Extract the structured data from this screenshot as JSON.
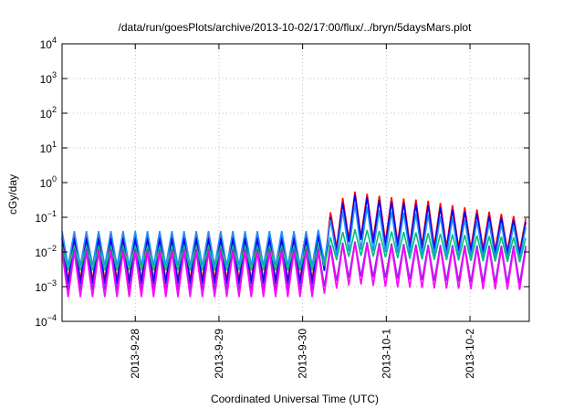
{
  "chart_data": {
    "type": "line",
    "title": "/data/run/goesPlots/archive/2013-10-02/17:00/flux/../bryn/5daysMars.plot",
    "xlabel": "Coordinated Universal Time (UTC)",
    "ylabel": "cGy/day",
    "y_scale": "log",
    "ylim": [
      0.0001,
      10000
    ],
    "y_ticks": [
      {
        "exp": -4,
        "value": 0.0001
      },
      {
        "exp": -3,
        "value": 0.001
      },
      {
        "exp": -2,
        "value": 0.01
      },
      {
        "exp": -1,
        "value": 0.1
      },
      {
        "exp": 0,
        "value": 1
      },
      {
        "exp": 1,
        "value": 10
      },
      {
        "exp": 2,
        "value": 100
      },
      {
        "exp": 3,
        "value": 1000
      },
      {
        "exp": 4,
        "value": 10000
      }
    ],
    "xlim": [
      "2013-09-27T03:00",
      "2013-10-02T17:00"
    ],
    "x_ticks": [
      "2013-9-28",
      "2013-9-29",
      "2013-9-30",
      "2013-10-1",
      "2013-10-2"
    ],
    "x_tick_dates": [
      "2013-09-28T00:00",
      "2013-09-29T00:00",
      "2013-09-30T00:00",
      "2013-10-01T00:00",
      "2013-10-02T00:00"
    ],
    "grid": true,
    "legend": "none",
    "oscillation_period_hours": 3.5,
    "series": [
      {
        "color": "#ff0000",
        "peaks": [
          [
            "2013-09-27T03:00",
            0.03
          ],
          [
            "2013-09-30T04:00",
            0.03
          ],
          [
            "2013-09-30T10:00",
            0.3
          ],
          [
            "2013-09-30T15:00",
            0.55
          ],
          [
            "2013-09-30T23:00",
            0.4
          ],
          [
            "2013-10-01T12:00",
            0.3
          ],
          [
            "2013-10-02T17:00",
            0.09
          ]
        ],
        "troughs": [
          [
            "2013-09-27T03:00",
            0.0015
          ],
          [
            "2013-09-30T04:00",
            0.0015
          ],
          [
            "2013-09-30T10:00",
            0.015
          ],
          [
            "2013-09-30T15:00",
            0.03
          ],
          [
            "2013-09-30T23:00",
            0.02
          ],
          [
            "2013-10-01T12:00",
            0.015
          ],
          [
            "2013-10-02T17:00",
            0.01
          ]
        ]
      },
      {
        "color": "#0000ff",
        "peaks": [
          [
            "2013-09-27T03:00",
            0.025
          ],
          [
            "2013-09-30T04:00",
            0.025
          ],
          [
            "2013-09-30T10:00",
            0.2
          ],
          [
            "2013-09-30T15:00",
            0.45
          ],
          [
            "2013-09-30T23:00",
            0.3
          ],
          [
            "2013-10-01T12:00",
            0.22
          ],
          [
            "2013-10-02T17:00",
            0.07
          ]
        ],
        "troughs": [
          [
            "2013-09-27T03:00",
            0.0012
          ],
          [
            "2013-09-30T04:00",
            0.0012
          ],
          [
            "2013-09-30T10:00",
            0.012
          ],
          [
            "2013-09-30T15:00",
            0.025
          ],
          [
            "2013-09-30T23:00",
            0.015
          ],
          [
            "2013-10-01T12:00",
            0.012
          ],
          [
            "2013-10-02T17:00",
            0.008
          ]
        ]
      },
      {
        "color": "#1e90ff",
        "peaks": [
          [
            "2013-09-27T03:00",
            0.04
          ],
          [
            "2013-09-30T04:00",
            0.04
          ],
          [
            "2013-09-30T10:00",
            0.12
          ],
          [
            "2013-09-30T15:00",
            0.25
          ],
          [
            "2013-09-30T23:00",
            0.15
          ],
          [
            "2013-10-01T12:00",
            0.12
          ],
          [
            "2013-10-02T17:00",
            0.05
          ]
        ],
        "troughs": [
          [
            "2013-09-27T03:00",
            0.004
          ],
          [
            "2013-09-30T04:00",
            0.004
          ],
          [
            "2013-09-30T10:00",
            0.008
          ],
          [
            "2013-09-30T15:00",
            0.012
          ],
          [
            "2013-09-30T23:00",
            0.01
          ],
          [
            "2013-10-01T12:00",
            0.008
          ],
          [
            "2013-10-02T17:00",
            0.006
          ]
        ]
      },
      {
        "color": "#00c07a",
        "peaks": [
          [
            "2013-09-27T03:00",
            0.015
          ],
          [
            "2013-09-30T04:00",
            0.015
          ],
          [
            "2013-09-30T10:00",
            0.035
          ],
          [
            "2013-09-30T15:00",
            0.045
          ],
          [
            "2013-09-30T23:00",
            0.04
          ],
          [
            "2013-10-01T12:00",
            0.035
          ],
          [
            "2013-10-02T17:00",
            0.025
          ]
        ],
        "troughs": [
          [
            "2013-09-27T03:00",
            0.003
          ],
          [
            "2013-09-30T04:00",
            0.003
          ],
          [
            "2013-09-30T10:00",
            0.006
          ],
          [
            "2013-09-30T15:00",
            0.008
          ],
          [
            "2013-09-30T23:00",
            0.007
          ],
          [
            "2013-10-01T12:00",
            0.006
          ],
          [
            "2013-10-02T17:00",
            0.005
          ]
        ]
      },
      {
        "color": "#8a2be2",
        "peaks": [
          [
            "2013-09-27T03:00",
            0.012
          ],
          [
            "2013-09-30T04:00",
            0.012
          ],
          [
            "2013-09-30T10:00",
            0.018
          ],
          [
            "2013-09-30T15:00",
            0.02
          ],
          [
            "2013-09-30T23:00",
            0.018
          ],
          [
            "2013-10-01T12:00",
            0.016
          ],
          [
            "2013-10-02T17:00",
            0.015
          ]
        ],
        "troughs": [
          [
            "2013-09-27T03:00",
            0.0008
          ],
          [
            "2013-09-30T04:00",
            0.0008
          ],
          [
            "2013-09-30T10:00",
            0.0015
          ],
          [
            "2013-09-30T15:00",
            0.002
          ],
          [
            "2013-09-30T23:00",
            0.0018
          ],
          [
            "2013-10-01T12:00",
            0.0015
          ],
          [
            "2013-10-02T17:00",
            0.0012
          ]
        ]
      },
      {
        "color": "#ff00ff",
        "peaks": [
          [
            "2013-09-27T03:00",
            0.01
          ],
          [
            "2013-09-30T04:00",
            0.01
          ],
          [
            "2013-09-30T10:00",
            0.015
          ],
          [
            "2013-09-30T15:00",
            0.018
          ],
          [
            "2013-09-30T23:00",
            0.015
          ],
          [
            "2013-10-01T12:00",
            0.014
          ],
          [
            "2013-10-02T17:00",
            0.012
          ]
        ],
        "troughs": [
          [
            "2013-09-27T03:00",
            0.0005
          ],
          [
            "2013-09-30T04:00",
            0.0005
          ],
          [
            "2013-09-30T10:00",
            0.0009
          ],
          [
            "2013-09-30T15:00",
            0.0012
          ],
          [
            "2013-09-30T23:00",
            0.001
          ],
          [
            "2013-10-01T12:00",
            0.0009
          ],
          [
            "2013-10-02T17:00",
            0.0008
          ]
        ]
      }
    ]
  }
}
